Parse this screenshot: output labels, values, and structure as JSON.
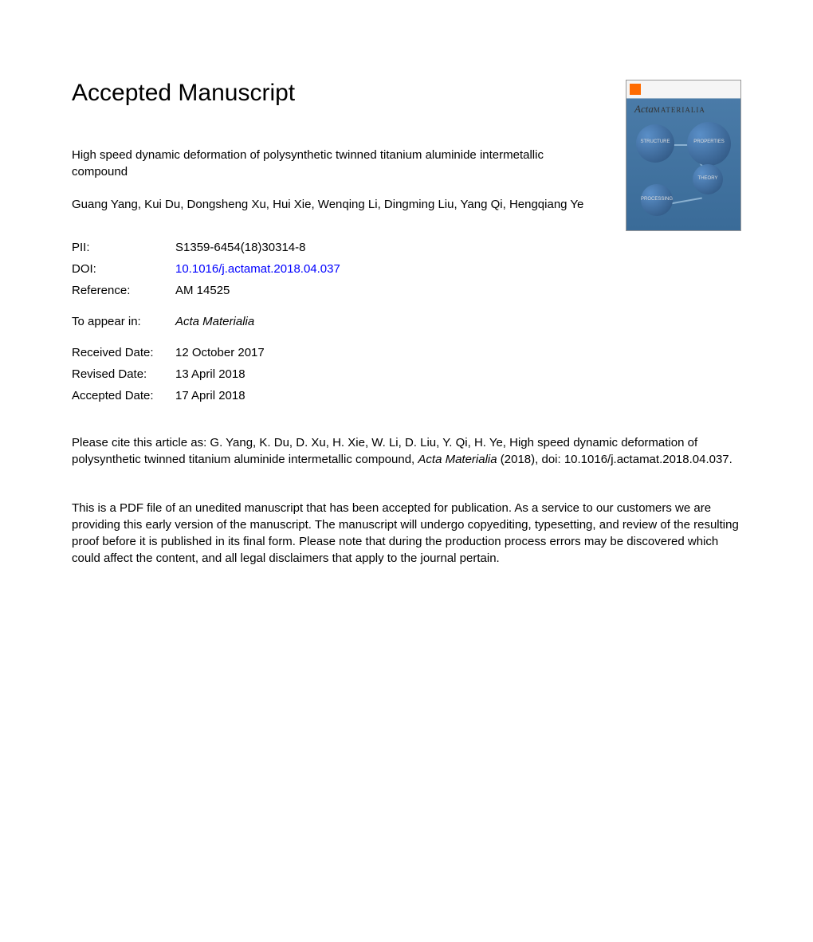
{
  "heading": "Accepted Manuscript",
  "article_title": "High speed dynamic deformation of polysynthetic twinned titanium aluminide intermetallic compound",
  "authors": "Guang Yang, Kui Du, Dongsheng Xu, Hui Xie, Wenqing Li, Dingming Liu, Yang Qi, Hengqiang Ye",
  "journal_cover": {
    "title_italic": "Acta",
    "title_caps": "MATERIALIA",
    "sphere_labels": [
      "STRUCTURE",
      "PROPERTIES",
      "THEORY",
      "PROCESSING"
    ]
  },
  "metadata": {
    "pii": {
      "label": "PII:",
      "value": "S1359-6454(18)30314-8"
    },
    "doi": {
      "label": "DOI:",
      "value": "10.1016/j.actamat.2018.04.037"
    },
    "reference": {
      "label": "Reference:",
      "value": "AM 14525"
    },
    "to_appear": {
      "label": "To appear in:",
      "value": "Acta Materialia"
    },
    "received": {
      "label": "Received Date:",
      "value": "12 October 2017"
    },
    "revised": {
      "label": "Revised Date:",
      "value": "13 April 2018"
    },
    "accepted": {
      "label": "Accepted Date:",
      "value": "17 April 2018"
    }
  },
  "citation": {
    "prefix": "Please cite this article as: G. Yang, K. Du, D. Xu, H. Xie, W. Li, D. Liu, Y. Qi, H. Ye, High speed dynamic deformation of polysynthetic twinned titanium aluminide intermetallic compound, ",
    "journal": "Acta Materialia",
    "suffix": " (2018), doi: 10.1016/j.actamat.2018.04.037."
  },
  "disclaimer": "This is a PDF file of an unedited manuscript that has been accepted for publication. As a service to our customers we are providing this early version of the manuscript. The manuscript will undergo copyediting, typesetting, and review of the resulting proof before it is published in its final form. Please note that during the production process errors may be discovered which could affect the content, and all legal disclaimers that apply to the journal pertain.",
  "colors": {
    "text": "#000000",
    "link": "#0000ff",
    "background": "#ffffff",
    "cover_blue": "#3a6b98",
    "cover_sphere": "#2a4f78"
  },
  "typography": {
    "heading_fontsize": 30,
    "body_fontsize": 15,
    "font_family": "Arial, Helvetica, sans-serif"
  }
}
